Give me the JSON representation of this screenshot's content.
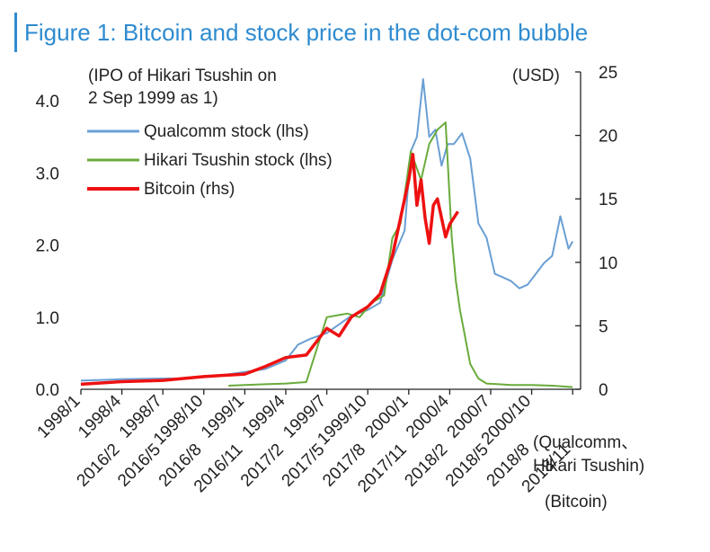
{
  "title": "Figure 1: Bitcoin and stock price in the dot-com bubble",
  "chart_data": {
    "type": "line",
    "left_axis_note": [
      "(IPO of Hikari Tsushin on",
      "2 Sep 1999 as 1)"
    ],
    "right_axis_unit": "(USD)",
    "x_note_1": [
      "(Qualcomm、",
      "Hikari Tsushin)"
    ],
    "x_note_2": "(Bitcoin)",
    "left_ylim": [
      0,
      4.4
    ],
    "left_ticks": [
      0.0,
      1.0,
      2.0,
      3.0,
      4.0
    ],
    "left_tick_labels": [
      "0.0",
      "1.0",
      "2.0",
      "3.0",
      "4.0"
    ],
    "right_ylim": [
      0,
      25
    ],
    "right_ticks": [
      0,
      5,
      10,
      15,
      20,
      25
    ],
    "right_tick_labels": [
      "0",
      "5",
      "10",
      "15",
      "20",
      "25"
    ],
    "x_ticks_top": [
      "1998/1",
      "1998/4",
      "1998/7",
      "1998/10",
      "1999/1",
      "1999/4",
      "1999/7",
      "1999/10",
      "2000/1",
      "2000/4",
      "2000/7",
      "2000/10"
    ],
    "x_ticks_bottom": [
      "2016/2",
      "2016/5",
      "2016/8",
      "2016/11",
      "2017/2",
      "2017/5",
      "2017/8",
      "2017/11",
      "2018/2",
      "2018/5",
      "2018/8",
      "2018/11"
    ],
    "legend_position": "top-left",
    "series": [
      {
        "name": "Qualcomm stock (lhs)",
        "axis": "left",
        "color": "#6a9fd4",
        "x": [
          0,
          1,
          2,
          2.5,
          3,
          3.5,
          4,
          4.5,
          5,
          5.3,
          5.6,
          6,
          6.3,
          6.6,
          7,
          7.3,
          7.6,
          7.9,
          8.05,
          8.2,
          8.35,
          8.5,
          8.65,
          8.8,
          8.95,
          9.1,
          9.3,
          9.5,
          9.7,
          9.9,
          10.1,
          10.3,
          10.5,
          10.7,
          10.9,
          11.1,
          11.3,
          11.5,
          11.7,
          11.9,
          12
        ],
        "values": [
          0.12,
          0.14,
          0.15,
          0.15,
          0.17,
          0.2,
          0.24,
          0.28,
          0.4,
          0.62,
          0.7,
          0.78,
          0.9,
          1.02,
          1.1,
          1.2,
          1.8,
          2.2,
          3.3,
          3.5,
          4.3,
          3.5,
          3.6,
          3.1,
          3.4,
          3.4,
          3.55,
          3.2,
          2.3,
          2.1,
          1.6,
          1.55,
          1.5,
          1.4,
          1.45,
          1.6,
          1.75,
          1.85,
          2.4,
          1.95,
          2.05
        ]
      },
      {
        "name": "Hikari Tsushin stock (lhs)",
        "axis": "left",
        "color": "#6aab3c",
        "x": [
          3.6,
          4,
          4.5,
          5,
          5.5,
          6,
          6.5,
          6.8,
          7.1,
          7.4,
          7.6,
          7.8,
          8.05,
          8.3,
          8.5,
          8.7,
          8.9,
          9.05,
          9.15,
          9.25,
          9.35,
          9.5,
          9.7,
          9.9,
          10.2,
          10.5,
          11,
          11.5,
          12
        ],
        "values": [
          0.05,
          0.06,
          0.07,
          0.08,
          0.1,
          1.0,
          1.05,
          1.0,
          1.2,
          1.3,
          2.1,
          2.3,
          3.3,
          2.9,
          3.4,
          3.6,
          3.7,
          2.1,
          1.5,
          1.1,
          0.8,
          0.35,
          0.15,
          0.08,
          0.07,
          0.06,
          0.06,
          0.05,
          0.03
        ]
      },
      {
        "name": "Bitcoin (rhs)",
        "axis": "right",
        "color": "#ee1111",
        "x": [
          0,
          1,
          2,
          3,
          4,
          4.5,
          5,
          5.5,
          6,
          6.3,
          6.6,
          7,
          7.3,
          7.6,
          7.8,
          8.0,
          8.1,
          8.2,
          8.3,
          8.4,
          8.5,
          8.6,
          8.7,
          8.8,
          8.9,
          9.0,
          9.2
        ],
        "values": [
          0.4,
          0.6,
          0.7,
          1.0,
          1.2,
          1.8,
          2.5,
          2.7,
          4.8,
          4.2,
          5.7,
          6.5,
          7.5,
          10.5,
          13.5,
          16.5,
          18.5,
          14.5,
          16.5,
          13.5,
          11.5,
          14.5,
          15.0,
          13.5,
          12.0,
          13.0,
          14.0
        ]
      }
    ]
  }
}
